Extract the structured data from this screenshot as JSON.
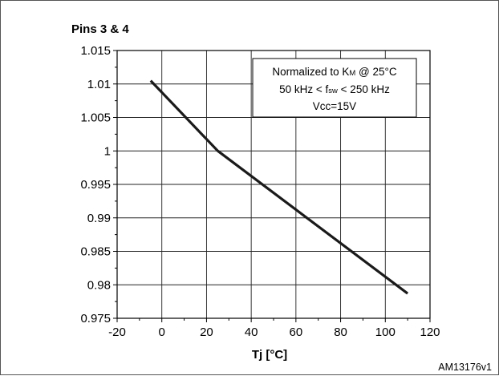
{
  "figure_id": "AM13176v1",
  "chart_data": {
    "type": "line",
    "title": "Pins 3 & 4",
    "xlabel": "Tj [°C]",
    "ylabel": "",
    "xlim": [
      -20,
      120
    ],
    "ylim": [
      0.975,
      1.015
    ],
    "x_ticks": [
      -20,
      0,
      20,
      40,
      60,
      80,
      100,
      120
    ],
    "y_ticks": [
      0.975,
      0.98,
      0.985,
      0.99,
      0.995,
      1,
      1.005,
      1.01,
      1.015
    ],
    "x_tick_labels": [
      "-20",
      "0",
      "20",
      "40",
      "60",
      "80",
      "100",
      "120"
    ],
    "y_tick_labels": [
      "0.975",
      "0.98",
      "0.985",
      "0.99",
      "0.995",
      "1",
      "1.005",
      "1.01",
      "1.015"
    ],
    "grid": true,
    "annotation": {
      "line1_prefix": "Normalized to K",
      "line1_sub": "M",
      "line1_suffix": " @ 25°C",
      "line2_prefix": "50 kHz < f",
      "line2_sub": "sw",
      "line2_suffix": " < 250 kHz",
      "line3": "Vcc=15V"
    },
    "series": [
      {
        "x": [
          -5,
          25,
          110
        ],
        "y": [
          1.0105,
          1.0,
          0.9787
        ],
        "color": "#1a1a1a"
      }
    ]
  }
}
